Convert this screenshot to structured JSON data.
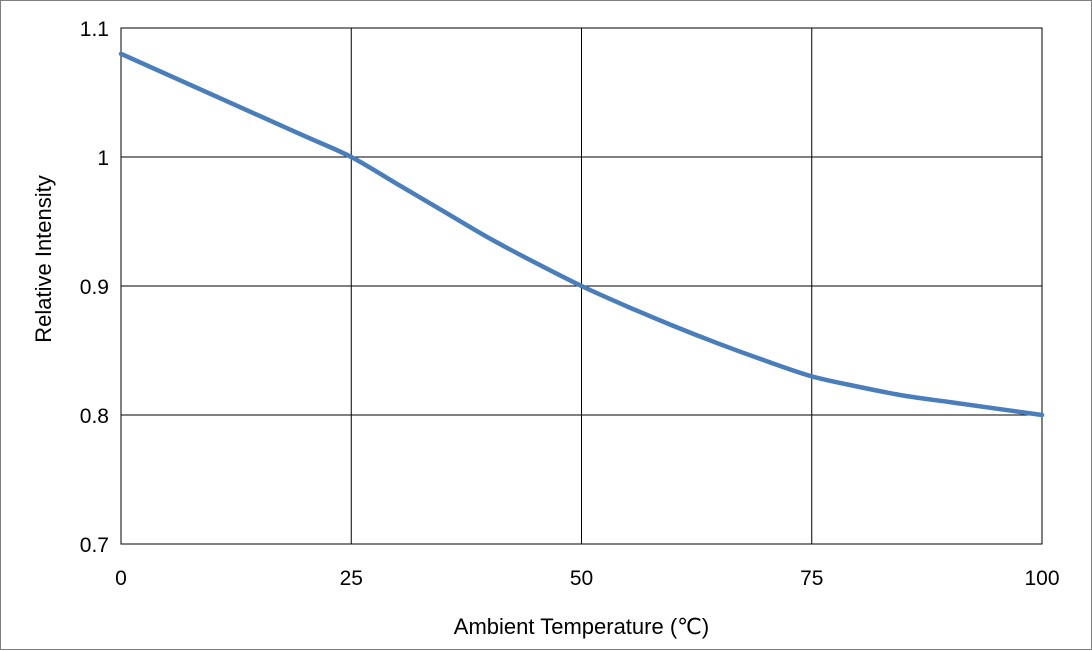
{
  "chart_data": {
    "type": "line",
    "title": "",
    "xlabel": "Ambient Temperature (℃)",
    "ylabel": "Relative Intensity",
    "xlim": [
      0,
      100
    ],
    "ylim": [
      0.7,
      1.1
    ],
    "xticks": [
      0,
      25,
      50,
      75,
      100
    ],
    "yticks": [
      0.7,
      0.8,
      0.9,
      1.0,
      1.1
    ],
    "xtick_labels": [
      "0",
      "25",
      "50",
      "75",
      "100"
    ],
    "ytick_labels": [
      "0.7",
      "0.8",
      "0.9",
      "1",
      "1.1"
    ],
    "grid": true,
    "legend": "none",
    "series": [
      {
        "color": "#4a7ebb",
        "x": [
          0,
          5,
          10,
          15,
          20,
          25,
          30,
          35,
          40,
          45,
          50,
          55,
          60,
          65,
          70,
          75,
          80,
          85,
          90,
          95,
          100
        ],
        "y": [
          1.08,
          1.064,
          1.048,
          1.032,
          1.016,
          1.0,
          0.979,
          0.958,
          0.937,
          0.918,
          0.9,
          0.884,
          0.869,
          0.855,
          0.842,
          0.83,
          0.822,
          0.815,
          0.81,
          0.805,
          0.8
        ]
      }
    ]
  }
}
